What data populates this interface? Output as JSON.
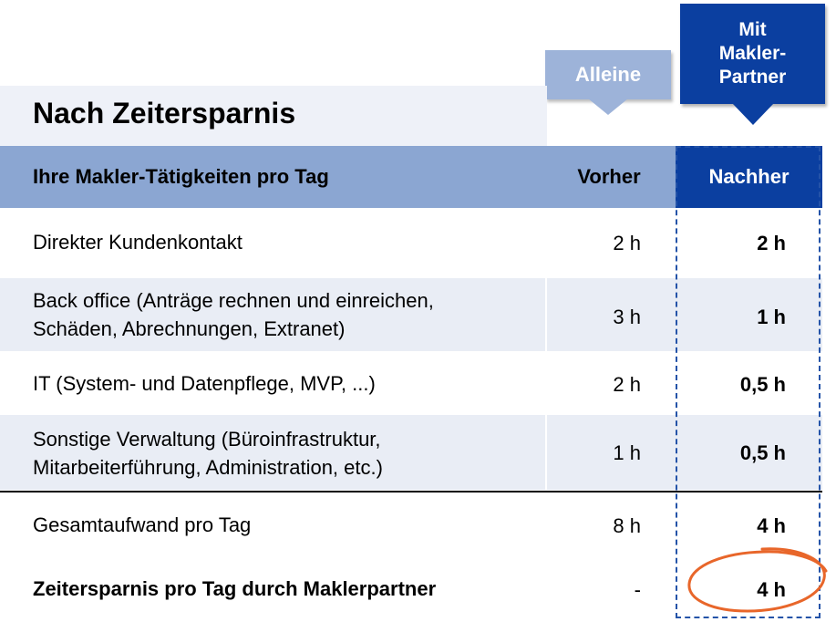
{
  "callouts": {
    "alleine": "Alleine",
    "mit_makler_partner": "Mit\nMakler-\nPartner"
  },
  "title": "Nach Zeitersparnis",
  "table": {
    "headers": {
      "activity": "Ihre Makler-Tätigkeiten pro Tag",
      "vorher": "Vorher",
      "nachher": "Nachher"
    },
    "rows": [
      {
        "activity": "Direkter Kundenkontakt",
        "vorher": "2 h",
        "nachher": "2 h"
      },
      {
        "activity": "Back office (Anträge rechnen und einreichen,\nSchäden, Abrechnungen, Extranet)",
        "vorher": "3 h",
        "nachher": "1 h"
      },
      {
        "activity": "IT (System- und Datenpflege, MVP, ...)",
        "vorher": "2 h",
        "nachher": "0,5 h"
      },
      {
        "activity": "Sonstige Verwaltung (Büroinfrastruktur,\nMitarbeiterführung, Administration, etc.)",
        "vorher": "1 h",
        "nachher": "0,5 h"
      }
    ],
    "total": {
      "activity": "Gesamtaufwand pro Tag",
      "vorher": "8 h",
      "nachher": "4 h"
    },
    "savings": {
      "activity": "Zeitersparnis pro Tag durch Maklerpartner",
      "vorher": "-",
      "nachher": "4 h"
    }
  },
  "colors": {
    "header_light": "#8ba6d2",
    "accent_dark_blue": "#0b3fa0",
    "circle_orange": "#e8662a"
  }
}
